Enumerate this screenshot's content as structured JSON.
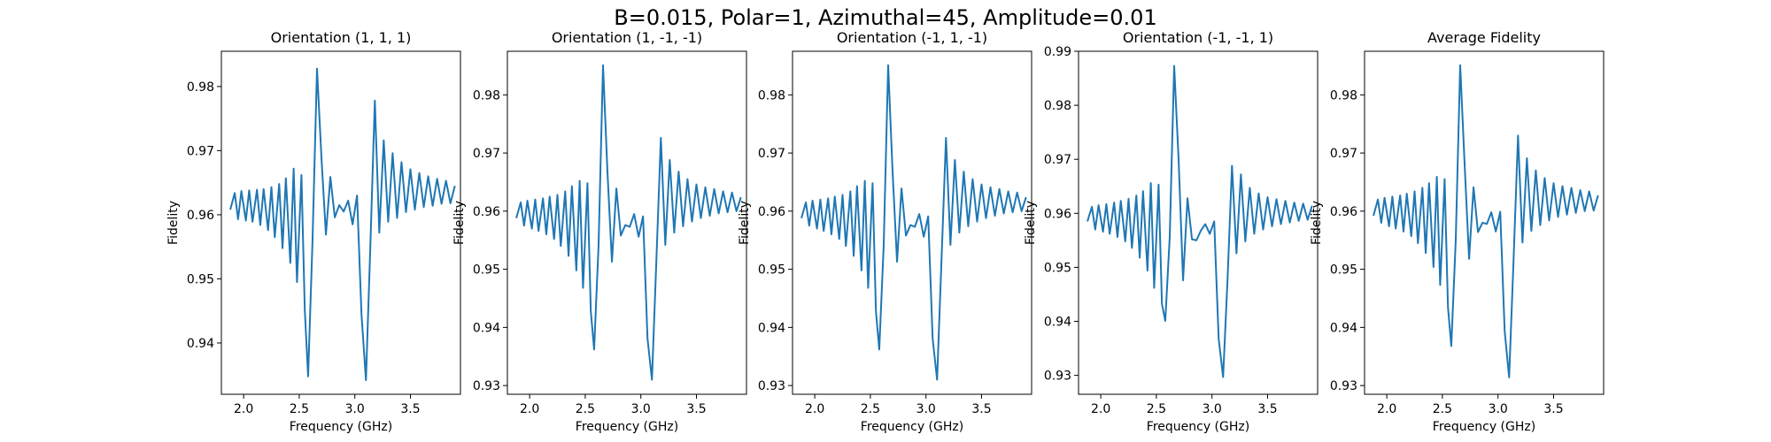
{
  "figure": {
    "title": "B=0.015, Polar=1, Azimuthal=45, Amplitude=0.01"
  },
  "chart_data": [
    {
      "type": "line",
      "title": "Orientation (1, 1, 1)",
      "xlabel": "Frequency (GHz)",
      "ylabel": "Fidelity",
      "xlim": [
        1.8,
        3.95
      ],
      "ylim": [
        0.932,
        0.9855
      ],
      "xticks": [
        "2.0",
        "2.5",
        "3.0",
        "3.5"
      ],
      "yticks": [
        "0.94",
        "0.95",
        "0.96",
        "0.97",
        "0.98"
      ],
      "grid": false,
      "color": "#1f77b4",
      "series": [
        {
          "x": [
            1.88,
            1.92,
            1.95,
            1.98,
            2.02,
            2.05,
            2.08,
            2.12,
            2.15,
            2.18,
            2.22,
            2.25,
            2.28,
            2.32,
            2.35,
            2.38,
            2.42,
            2.45,
            2.48,
            2.52,
            2.55,
            2.58,
            2.62,
            2.66,
            2.7,
            2.74,
            2.78,
            2.82,
            2.86,
            2.9,
            2.94,
            2.98,
            3.02,
            3.06,
            3.1,
            3.14,
            3.18,
            3.22,
            3.26,
            3.3,
            3.34,
            3.38,
            3.42,
            3.46,
            3.5,
            3.54,
            3.58,
            3.62,
            3.66,
            3.7,
            3.74,
            3.78,
            3.82,
            3.86,
            3.9
          ],
          "y": [
            0.9608,
            0.9634,
            0.9593,
            0.9637,
            0.9591,
            0.9638,
            0.9589,
            0.9639,
            0.9584,
            0.964,
            0.9576,
            0.9643,
            0.9565,
            0.9648,
            0.9548,
            0.9657,
            0.9525,
            0.9672,
            0.9495,
            0.9662,
            0.9452,
            0.9348,
            0.9562,
            0.9828,
            0.9689,
            0.9569,
            0.9659,
            0.9596,
            0.9615,
            0.9605,
            0.9622,
            0.9585,
            0.963,
            0.9445,
            0.9342,
            0.9553,
            0.9778,
            0.9572,
            0.9716,
            0.9589,
            0.9696,
            0.9595,
            0.9682,
            0.9604,
            0.9671,
            0.9608,
            0.9665,
            0.9612,
            0.966,
            0.9614,
            0.9656,
            0.9617,
            0.9653,
            0.9618,
            0.9645
          ]
        }
      ]
    },
    {
      "type": "line",
      "title": "Orientation (1, -1, -1)",
      "xlabel": "Frequency (GHz)",
      "ylabel": "Fidelity",
      "xlim": [
        1.8,
        3.95
      ],
      "ylim": [
        0.9285,
        0.9875
      ],
      "xticks": [
        "2.0",
        "2.5",
        "3.0",
        "3.5"
      ],
      "yticks": [
        "0.93",
        "0.94",
        "0.95",
        "0.96",
        "0.97",
        "0.98"
      ],
      "grid": false,
      "color": "#1f77b4",
      "series": [
        {
          "x": [
            1.88,
            1.92,
            1.95,
            1.98,
            2.02,
            2.05,
            2.08,
            2.12,
            2.15,
            2.18,
            2.22,
            2.25,
            2.28,
            2.32,
            2.35,
            2.38,
            2.42,
            2.45,
            2.48,
            2.52,
            2.55,
            2.58,
            2.62,
            2.66,
            2.7,
            2.74,
            2.78,
            2.82,
            2.86,
            2.9,
            2.94,
            2.98,
            3.02,
            3.06,
            3.1,
            3.14,
            3.18,
            3.22,
            3.26,
            3.3,
            3.34,
            3.38,
            3.42,
            3.46,
            3.5,
            3.54,
            3.58,
            3.62,
            3.66,
            3.7,
            3.74,
            3.78,
            3.82,
            3.86,
            3.9
          ],
          "y": [
            0.9588,
            0.9615,
            0.9575,
            0.9618,
            0.957,
            0.962,
            0.9566,
            0.9622,
            0.956,
            0.9625,
            0.9552,
            0.9628,
            0.954,
            0.9634,
            0.9523,
            0.9643,
            0.9498,
            0.9652,
            0.9468,
            0.9648,
            0.9428,
            0.9362,
            0.9542,
            0.9851,
            0.9667,
            0.9513,
            0.9639,
            0.9558,
            0.9576,
            0.9573,
            0.9595,
            0.9556,
            0.9591,
            0.9381,
            0.931,
            0.9517,
            0.9726,
            0.9542,
            0.9688,
            0.9563,
            0.9668,
            0.9574,
            0.9655,
            0.9582,
            0.9646,
            0.9588,
            0.9641,
            0.9592,
            0.9638,
            0.9596,
            0.9634,
            0.9598,
            0.9632,
            0.96,
            0.9624
          ]
        }
      ]
    },
    {
      "type": "line",
      "title": "Orientation (-1, 1, -1)",
      "xlabel": "Frequency (GHz)",
      "ylabel": "Fidelity",
      "xlim": [
        1.8,
        3.95
      ],
      "ylim": [
        0.9285,
        0.9875
      ],
      "xticks": [
        "2.0",
        "2.5",
        "3.0",
        "3.5"
      ],
      "yticks": [
        "0.93",
        "0.94",
        "0.95",
        "0.96",
        "0.97",
        "0.98"
      ],
      "grid": false,
      "color": "#1f77b4",
      "series": [
        {
          "x": [
            1.88,
            1.92,
            1.95,
            1.98,
            2.02,
            2.05,
            2.08,
            2.12,
            2.15,
            2.18,
            2.22,
            2.25,
            2.28,
            2.32,
            2.35,
            2.38,
            2.42,
            2.45,
            2.48,
            2.52,
            2.55,
            2.58,
            2.62,
            2.66,
            2.7,
            2.74,
            2.78,
            2.82,
            2.86,
            2.9,
            2.94,
            2.98,
            3.02,
            3.06,
            3.1,
            3.14,
            3.18,
            3.22,
            3.26,
            3.3,
            3.34,
            3.38,
            3.42,
            3.46,
            3.5,
            3.54,
            3.58,
            3.62,
            3.66,
            3.7,
            3.74,
            3.78,
            3.82,
            3.86,
            3.9
          ],
          "y": [
            0.9588,
            0.9615,
            0.9575,
            0.9618,
            0.957,
            0.962,
            0.9566,
            0.9622,
            0.956,
            0.9625,
            0.9552,
            0.9628,
            0.954,
            0.9634,
            0.9523,
            0.9643,
            0.9498,
            0.9652,
            0.9468,
            0.9648,
            0.9428,
            0.9362,
            0.9542,
            0.9851,
            0.9667,
            0.9513,
            0.9639,
            0.9558,
            0.9576,
            0.9573,
            0.9595,
            0.9556,
            0.9591,
            0.9381,
            0.931,
            0.9517,
            0.9726,
            0.9542,
            0.9688,
            0.9563,
            0.9668,
            0.9574,
            0.9655,
            0.9582,
            0.9646,
            0.9588,
            0.9641,
            0.9592,
            0.9638,
            0.9596,
            0.9634,
            0.9598,
            0.9632,
            0.96,
            0.9624
          ]
        }
      ]
    },
    {
      "type": "line",
      "title": "Orientation (-1, -1, 1)",
      "xlabel": "Frequency (GHz)",
      "ylabel": "Fidelity",
      "xlim": [
        1.8,
        3.95
      ],
      "ylim": [
        0.9265,
        0.99
      ],
      "xticks": [
        "2.0",
        "2.5",
        "3.0",
        "3.5"
      ],
      "yticks": [
        "0.93",
        "0.94",
        "0.95",
        "0.96",
        "0.97",
        "0.98",
        "0.99"
      ],
      "grid": false,
      "color": "#1f77b4",
      "series": [
        {
          "x": [
            1.88,
            1.92,
            1.95,
            1.98,
            2.02,
            2.05,
            2.08,
            2.12,
            2.15,
            2.18,
            2.22,
            2.25,
            2.28,
            2.32,
            2.35,
            2.38,
            2.42,
            2.45,
            2.48,
            2.52,
            2.55,
            2.58,
            2.62,
            2.66,
            2.7,
            2.74,
            2.78,
            2.82,
            2.86,
            2.9,
            2.94,
            2.98,
            3.02,
            3.06,
            3.1,
            3.14,
            3.18,
            3.22,
            3.26,
            3.3,
            3.34,
            3.38,
            3.42,
            3.46,
            3.5,
            3.54,
            3.58,
            3.62,
            3.66,
            3.7,
            3.74,
            3.78,
            3.82,
            3.86,
            3.9
          ],
          "y": [
            0.9585,
            0.9612,
            0.957,
            0.9615,
            0.9566,
            0.9617,
            0.9562,
            0.962,
            0.9556,
            0.9623,
            0.9548,
            0.9627,
            0.9536,
            0.9633,
            0.9518,
            0.9641,
            0.9494,
            0.9656,
            0.9462,
            0.9653,
            0.9432,
            0.9401,
            0.9556,
            0.9873,
            0.9699,
            0.9476,
            0.9628,
            0.9552,
            0.955,
            0.9568,
            0.958,
            0.9562,
            0.9585,
            0.9368,
            0.9297,
            0.9478,
            0.9688,
            0.9526,
            0.9672,
            0.9548,
            0.9647,
            0.9562,
            0.9637,
            0.957,
            0.963,
            0.9576,
            0.9626,
            0.958,
            0.9623,
            0.9583,
            0.962,
            0.9586,
            0.9618,
            0.9588,
            0.9614
          ]
        }
      ]
    },
    {
      "type": "line",
      "title": "Average Fidelity",
      "xlabel": "Frequency (GHz)",
      "ylabel": "Fidelity",
      "xlim": [
        1.8,
        3.95
      ],
      "ylim": [
        0.9285,
        0.9875
      ],
      "xticks": [
        "2.0",
        "2.5",
        "3.0",
        "3.5"
      ],
      "yticks": [
        "0.93",
        "0.94",
        "0.95",
        "0.96",
        "0.97",
        "0.98"
      ],
      "grid": false,
      "color": "#1f77b4",
      "series": [
        {
          "x": [
            1.88,
            1.92,
            1.95,
            1.98,
            2.02,
            2.05,
            2.08,
            2.12,
            2.15,
            2.18,
            2.22,
            2.25,
            2.28,
            2.32,
            2.35,
            2.38,
            2.42,
            2.45,
            2.48,
            2.52,
            2.55,
            2.58,
            2.62,
            2.66,
            2.7,
            2.74,
            2.78,
            2.82,
            2.86,
            2.9,
            2.94,
            2.98,
            3.02,
            3.06,
            3.1,
            3.14,
            3.18,
            3.22,
            3.26,
            3.3,
            3.34,
            3.38,
            3.42,
            3.46,
            3.5,
            3.54,
            3.58,
            3.62,
            3.66,
            3.7,
            3.74,
            3.78,
            3.82,
            3.86,
            3.9
          ],
          "y": [
            0.9592,
            0.962,
            0.958,
            0.9623,
            0.9574,
            0.9625,
            0.957,
            0.9627,
            0.9565,
            0.963,
            0.9557,
            0.9634,
            0.9545,
            0.964,
            0.9528,
            0.9648,
            0.9504,
            0.9659,
            0.9473,
            0.9655,
            0.9435,
            0.9368,
            0.955,
            0.9851,
            0.968,
            0.9518,
            0.9641,
            0.9564,
            0.958,
            0.9578,
            0.9598,
            0.9565,
            0.9599,
            0.9394,
            0.9314,
            0.9516,
            0.973,
            0.9546,
            0.9691,
            0.9566,
            0.967,
            0.9576,
            0.9657,
            0.9584,
            0.9648,
            0.959,
            0.9643,
            0.9594,
            0.964,
            0.9597,
            0.9636,
            0.96,
            0.9634,
            0.9601,
            0.9627
          ]
        }
      ]
    }
  ]
}
